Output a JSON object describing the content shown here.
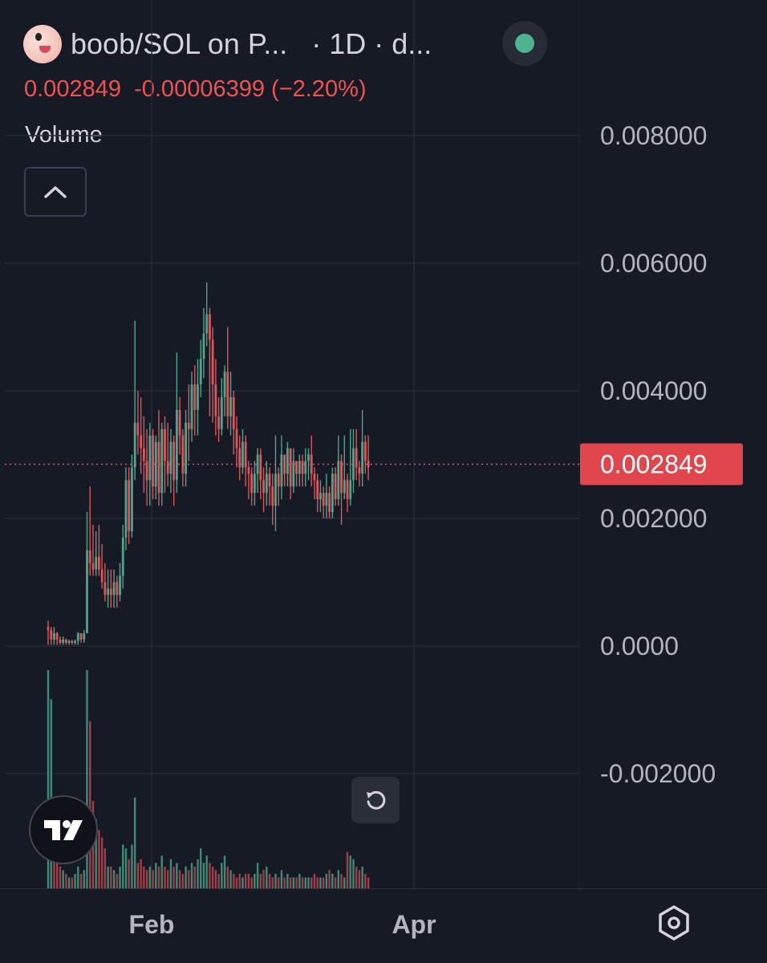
{
  "header": {
    "title": "boob/SOL on P...   · 1D · d...",
    "last_price": "0.002849",
    "change": "-0.00006399",
    "change_pct": "(−2.20%)"
  },
  "volume_label": "Volume",
  "colors": {
    "up": "#4fa58c",
    "down": "#e0545a",
    "background": "#161a25",
    "grid": "#252a35",
    "text": "#b2b5be"
  },
  "icons": {
    "collapse": "chevron-up-icon",
    "logo": "tradingview-logo-icon",
    "reset": "reset-icon",
    "settings": "settings-icon"
  },
  "chart_data": {
    "type": "candlestick",
    "interval": "1D",
    "price_axis": {
      "ticks": [
        "0.008000",
        "0.006000",
        "0.004000",
        "0.002000",
        "0.0000",
        "-0.002000"
      ],
      "tick_values": [
        0.008,
        0.006,
        0.004,
        0.002,
        0.0,
        -0.002
      ],
      "ylim": [
        -0.0025,
        0.0094
      ]
    },
    "x_axis": {
      "tick_labels": [
        "Feb",
        "Apr"
      ]
    },
    "last_price": 0.002849,
    "last_price_label": "0.002849",
    "grid": true,
    "candles": [
      [
        0.0003,
        0.00025,
        0.0004,
        2e-05
      ],
      [
        0.00025,
        0.0001,
        0.0003,
        2e-05
      ],
      [
        0.0001,
        0.0002,
        0.0003,
        2e-05
      ],
      [
        0.0002,
        0.0001,
        0.00022,
        2e-05
      ],
      [
        0.0001,
        5e-05,
        0.00015,
        2e-05
      ],
      [
        5e-05,
        0.0001,
        0.00015,
        2e-05
      ],
      [
        0.0001,
        5e-05,
        0.00012,
        2e-05
      ],
      [
        5e-05,
        8e-05,
        0.0001,
        2e-05
      ],
      [
        8e-05,
        5e-05,
        0.0001,
        2e-05
      ],
      [
        5e-05,
        8e-05,
        0.0001,
        2e-05
      ],
      [
        8e-05,
        0.0002,
        0.00022,
        2e-05
      ],
      [
        0.0002,
        0.0001,
        0.0002,
        5e-05
      ],
      [
        0.0001,
        0.0002,
        0.00025,
        5e-05
      ],
      [
        0.0002,
        0.0015,
        0.0021,
        0.0002
      ],
      [
        0.0015,
        0.0013,
        0.0025,
        0.0011
      ],
      [
        0.0013,
        0.0012,
        0.0019,
        0.0011
      ],
      [
        0.0012,
        0.0014,
        0.0018,
        0.0011
      ],
      [
        0.0014,
        0.0012,
        0.0019,
        0.0011
      ],
      [
        0.0012,
        0.001,
        0.0016,
        0.0009
      ],
      [
        0.001,
        0.0008,
        0.0013,
        0.0007
      ],
      [
        0.0008,
        0.0009,
        0.0012,
        0.0006
      ],
      [
        0.0009,
        0.0008,
        0.0012,
        0.0006
      ],
      [
        0.0008,
        0.001,
        0.0012,
        0.0006
      ],
      [
        0.001,
        0.0008,
        0.0011,
        0.0006
      ],
      [
        0.0008,
        0.0011,
        0.0013,
        0.0007
      ],
      [
        0.0011,
        0.0017,
        0.0019,
        0.0009
      ],
      [
        0.0017,
        0.0026,
        0.0028,
        0.0015
      ],
      [
        0.0026,
        0.0018,
        0.0028,
        0.0016
      ],
      [
        0.0018,
        0.0028,
        0.003,
        0.0017
      ],
      [
        0.0028,
        0.0035,
        0.0051,
        0.0026
      ],
      [
        0.0035,
        0.0033,
        0.004,
        0.003
      ],
      [
        0.0033,
        0.0031,
        0.0039,
        0.0027
      ],
      [
        0.0031,
        0.0029,
        0.0036,
        0.0024
      ],
      [
        0.0029,
        0.0026,
        0.0034,
        0.0022
      ],
      [
        0.0026,
        0.0033,
        0.0035,
        0.0022
      ],
      [
        0.0033,
        0.0025,
        0.0034,
        0.0023
      ],
      [
        0.0025,
        0.0032,
        0.0033,
        0.0023
      ],
      [
        0.0032,
        0.0024,
        0.0037,
        0.0022
      ],
      [
        0.0024,
        0.0034,
        0.0035,
        0.0022
      ],
      [
        0.0034,
        0.0029,
        0.0036,
        0.0024
      ],
      [
        0.0029,
        0.0027,
        0.0035,
        0.0025
      ],
      [
        0.0027,
        0.0032,
        0.0034,
        0.0024
      ],
      [
        0.0032,
        0.0026,
        0.0033,
        0.0022
      ],
      [
        0.0026,
        0.0037,
        0.0046,
        0.0024
      ],
      [
        0.0037,
        0.0033,
        0.0039,
        0.003
      ],
      [
        0.0033,
        0.0027,
        0.0034,
        0.0025
      ],
      [
        0.0027,
        0.0035,
        0.0037,
        0.0025
      ],
      [
        0.0035,
        0.0034,
        0.0041,
        0.0029
      ],
      [
        0.0034,
        0.0041,
        0.0043,
        0.0032
      ],
      [
        0.0041,
        0.0037,
        0.0044,
        0.0033
      ],
      [
        0.0037,
        0.0041,
        0.0045,
        0.0033
      ],
      [
        0.0041,
        0.0045,
        0.0048,
        0.0039
      ],
      [
        0.0045,
        0.0049,
        0.0053,
        0.0042
      ],
      [
        0.0049,
        0.0052,
        0.0057,
        0.0047
      ],
      [
        0.0052,
        0.0048,
        0.0053,
        0.0036
      ],
      [
        0.0048,
        0.0041,
        0.005,
        0.0035
      ],
      [
        0.0041,
        0.0036,
        0.0045,
        0.0033
      ],
      [
        0.0036,
        0.0034,
        0.0039,
        0.0032
      ],
      [
        0.0034,
        0.0039,
        0.0042,
        0.0033
      ],
      [
        0.0039,
        0.0043,
        0.0044,
        0.0036
      ],
      [
        0.0043,
        0.0036,
        0.005,
        0.0034
      ],
      [
        0.0036,
        0.0039,
        0.0043,
        0.0033
      ],
      [
        0.0039,
        0.0034,
        0.004,
        0.003
      ],
      [
        0.0034,
        0.0031,
        0.0036,
        0.0028
      ],
      [
        0.0031,
        0.0028,
        0.0033,
        0.0026
      ],
      [
        0.0028,
        0.0032,
        0.0034,
        0.0027
      ],
      [
        0.0032,
        0.0028,
        0.0033,
        0.0025
      ],
      [
        0.0028,
        0.0027,
        0.0029,
        0.0023
      ],
      [
        0.0027,
        0.0024,
        0.0028,
        0.0022
      ],
      [
        0.0024,
        0.0027,
        0.0029,
        0.0022
      ],
      [
        0.0027,
        0.003,
        0.0031,
        0.0024
      ],
      [
        0.003,
        0.0026,
        0.0031,
        0.0023
      ],
      [
        0.0026,
        0.0024,
        0.0028,
        0.0021
      ],
      [
        0.0024,
        0.0027,
        0.0029,
        0.0022
      ],
      [
        0.0027,
        0.0025,
        0.0028,
        0.0022
      ],
      [
        0.0025,
        0.0022,
        0.0027,
        0.0019
      ],
      [
        0.0022,
        0.0027,
        0.0033,
        0.0018
      ],
      [
        0.0027,
        0.0025,
        0.0028,
        0.0022
      ],
      [
        0.0025,
        0.003,
        0.0033,
        0.0023
      ],
      [
        0.003,
        0.0027,
        0.003,
        0.0025
      ],
      [
        0.0027,
        0.0031,
        0.0032,
        0.0025
      ],
      [
        0.0031,
        0.0025,
        0.0031,
        0.0023
      ],
      [
        0.0025,
        0.0029,
        0.0031,
        0.0024
      ],
      [
        0.0029,
        0.0027,
        0.0029,
        0.0025
      ],
      [
        0.0027,
        0.0029,
        0.003,
        0.0025
      ],
      [
        0.0029,
        0.0027,
        0.003,
        0.0025
      ],
      [
        0.0027,
        0.0029,
        0.0031,
        0.0025
      ],
      [
        0.0029,
        0.003,
        0.0031,
        0.0026
      ],
      [
        0.003,
        0.0027,
        0.0033,
        0.0025
      ],
      [
        0.0027,
        0.0026,
        0.0028,
        0.0023
      ],
      [
        0.0026,
        0.0023,
        0.0027,
        0.0021
      ],
      [
        0.0023,
        0.0024,
        0.0026,
        0.0021
      ],
      [
        0.0024,
        0.0022,
        0.0025,
        0.002
      ],
      [
        0.0022,
        0.0024,
        0.0027,
        0.002
      ],
      [
        0.0024,
        0.0021,
        0.0025,
        0.002
      ],
      [
        0.0021,
        0.0027,
        0.0028,
        0.002
      ],
      [
        0.0027,
        0.0023,
        0.0028,
        0.0022
      ],
      [
        0.0023,
        0.0029,
        0.0033,
        0.0022
      ],
      [
        0.0029,
        0.0024,
        0.003,
        0.0019
      ],
      [
        0.0024,
        0.0026,
        0.0033,
        0.0023
      ],
      [
        0.0026,
        0.0023,
        0.0027,
        0.0021
      ],
      [
        0.0023,
        0.0026,
        0.0034,
        0.0022
      ],
      [
        0.0026,
        0.0031,
        0.0034,
        0.0024
      ],
      [
        0.0031,
        0.0028,
        0.0034,
        0.0026
      ],
      [
        0.0028,
        0.0027,
        0.0029,
        0.0025
      ],
      [
        0.0027,
        0.0032,
        0.0037,
        0.0025
      ],
      [
        0.0032,
        0.0029,
        0.0033,
        0.0027
      ],
      [
        0.0029,
        0.0028,
        0.0033,
        0.0026
      ]
    ],
    "volume": {
      "max": 300,
      "up": [
        true,
        true,
        false,
        false,
        false,
        true,
        false,
        true,
        false,
        true,
        true,
        false,
        true,
        true,
        false,
        false,
        true,
        false,
        false,
        false,
        true,
        false,
        true,
        false,
        true,
        true,
        true,
        false,
        true,
        true,
        false,
        false,
        false,
        false,
        true,
        false,
        true,
        false,
        true,
        false,
        false,
        true,
        false,
        true,
        false,
        false,
        true,
        false,
        true,
        false,
        true,
        true,
        true,
        true,
        false,
        false,
        false,
        false,
        true,
        true,
        false,
        true,
        false,
        false,
        false,
        true,
        false,
        false,
        false,
        true,
        true,
        false,
        false,
        true,
        false,
        false,
        true,
        false,
        true,
        false,
        true,
        false,
        true,
        false,
        true,
        false,
        true,
        true,
        false,
        false,
        false,
        true,
        false,
        true,
        false,
        true,
        false,
        true,
        false,
        true,
        false,
        true,
        true,
        false,
        false,
        true,
        false,
        false
      ],
      "values": [
        300,
        260,
        120,
        40,
        30,
        25,
        20,
        15,
        15,
        20,
        30,
        20,
        25,
        300,
        230,
        120,
        95,
        80,
        70,
        55,
        30,
        30,
        25,
        20,
        30,
        60,
        55,
        40,
        60,
        125,
        35,
        40,
        30,
        25,
        30,
        25,
        35,
        30,
        45,
        30,
        25,
        40,
        30,
        35,
        25,
        20,
        30,
        25,
        35,
        30,
        40,
        55,
        35,
        45,
        35,
        30,
        25,
        20,
        35,
        45,
        30,
        25,
        20,
        15,
        20,
        15,
        20,
        20,
        15,
        20,
        35,
        20,
        25,
        30,
        20,
        15,
        20,
        15,
        25,
        15,
        20,
        15,
        15,
        15,
        20,
        15,
        15,
        15,
        15,
        20,
        15,
        15,
        15,
        20,
        25,
        20,
        15,
        25,
        20,
        15,
        50,
        45,
        40,
        30,
        25,
        30,
        20,
        15
      ]
    }
  }
}
